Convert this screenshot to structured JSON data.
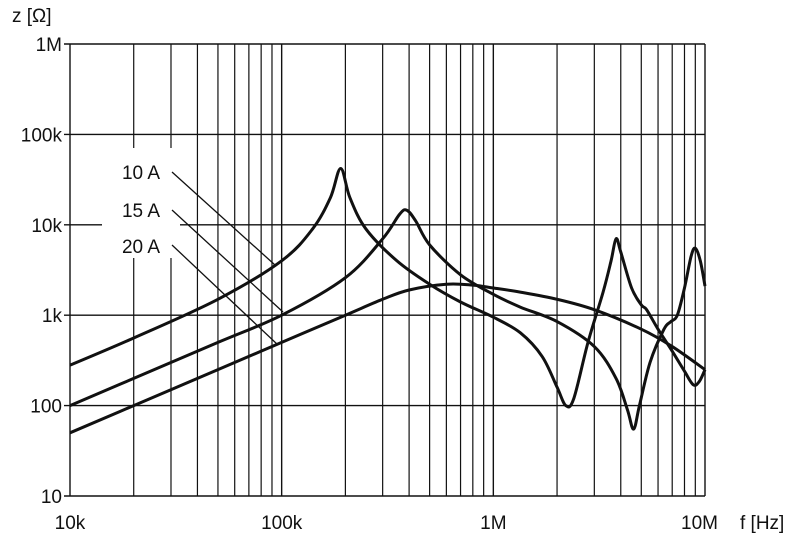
{
  "chart_data": {
    "type": "line",
    "title": "",
    "ylabel": "z [Ω]",
    "xlabel": "f [Hz]",
    "xscale": "log",
    "yscale": "log",
    "xlim": [
      10000,
      10000000
    ],
    "ylim": [
      10,
      1000000
    ],
    "grid": true,
    "legend": "leader-line labels, left",
    "x_ticks": [
      {
        "value": 10000,
        "label": "10k"
      },
      {
        "value": 100000,
        "label": "100k"
      },
      {
        "value": 1000000,
        "label": "1M"
      },
      {
        "value": 10000000,
        "label": "10M"
      }
    ],
    "y_ticks": [
      {
        "value": 10,
        "label": "10"
      },
      {
        "value": 100,
        "label": "100"
      },
      {
        "value": 1000,
        "label": "1k"
      },
      {
        "value": 10000,
        "label": "10k"
      },
      {
        "value": 100000,
        "label": "100k"
      },
      {
        "value": 1000000,
        "label": "1M"
      }
    ],
    "series": [
      {
        "name": "10 A",
        "points": [
          [
            10000.0,
            280
          ],
          [
            20000.0,
            560
          ],
          [
            50000.0,
            1500
          ],
          [
            100000.0,
            4000
          ],
          [
            140000.0,
            9000
          ],
          [
            170000.0,
            20000
          ],
          [
            190000.0,
            42000
          ],
          [
            210000.0,
            20000
          ],
          [
            250000.0,
            9000
          ],
          [
            350000.0,
            4000
          ],
          [
            500000.0,
            2200
          ],
          [
            700000.0,
            1400
          ],
          [
            1000000.0,
            950
          ],
          [
            1340000.0,
            640
          ],
          [
            1700000.0,
            350
          ],
          [
            2000000.0,
            160
          ],
          [
            2200000.0,
            100
          ],
          [
            2400000.0,
            120
          ],
          [
            2800000.0,
            500
          ],
          [
            3300000.0,
            1800
          ],
          [
            3600000.0,
            4000
          ],
          [
            3800000.0,
            7000
          ],
          [
            4000000.0,
            5000
          ],
          [
            4500000.0,
            2000
          ],
          [
            5000000.0,
            1300
          ],
          [
            5300000.0,
            1150
          ],
          [
            6000000.0,
            700
          ],
          [
            7000000.0,
            400
          ],
          [
            8000000.0,
            240
          ],
          [
            8800000.0,
            170
          ],
          [
            9400000.0,
            185
          ],
          [
            10000000.0,
            250
          ]
        ]
      },
      {
        "name": "15 A",
        "points": [
          [
            10000.0,
            100
          ],
          [
            20000.0,
            200
          ],
          [
            50000.0,
            500
          ],
          [
            100000.0,
            1000
          ],
          [
            200000.0,
            2600
          ],
          [
            300000.0,
            7000
          ],
          [
            360000.0,
            13000
          ],
          [
            390000.0,
            14500
          ],
          [
            430000.0,
            11000
          ],
          [
            500000.0,
            6000
          ],
          [
            700000.0,
            2800
          ],
          [
            1000000.0,
            1700
          ],
          [
            1340000.0,
            1230
          ],
          [
            2000000.0,
            850
          ],
          [
            3000000.0,
            450
          ],
          [
            3800000.0,
            200
          ],
          [
            4300000.0,
            90
          ],
          [
            4600000.0,
            55
          ],
          [
            4900000.0,
            100
          ],
          [
            5500000.0,
            300
          ],
          [
            6400000.0,
            700
          ],
          [
            6900000.0,
            850
          ],
          [
            7400000.0,
            1000
          ],
          [
            8000000.0,
            2000
          ],
          [
            8600000.0,
            4500
          ],
          [
            9000000.0,
            5500
          ],
          [
            9500000.0,
            4000
          ],
          [
            10000000.0,
            2100
          ]
        ]
      },
      {
        "name": "20 A",
        "points": [
          [
            10000.0,
            50
          ],
          [
            20000.0,
            100
          ],
          [
            50000.0,
            250
          ],
          [
            100000.0,
            500
          ],
          [
            200000.0,
            1000
          ],
          [
            300000.0,
            1500
          ],
          [
            400000.0,
            1900
          ],
          [
            600000.0,
            2200
          ],
          [
            800000.0,
            2150
          ],
          [
            1000000.0,
            2000
          ],
          [
            1340000.0,
            1800
          ],
          [
            2000000.0,
            1500
          ],
          [
            3000000.0,
            1150
          ],
          [
            5000000.0,
            700
          ],
          [
            7000000.0,
            450
          ],
          [
            10000000.0,
            250
          ]
        ]
      }
    ],
    "labels": [
      {
        "text": "10 A",
        "series": "10 A"
      },
      {
        "text": "15 A",
        "series": "15 A"
      },
      {
        "text": "20 A",
        "series": "20 A"
      }
    ]
  }
}
